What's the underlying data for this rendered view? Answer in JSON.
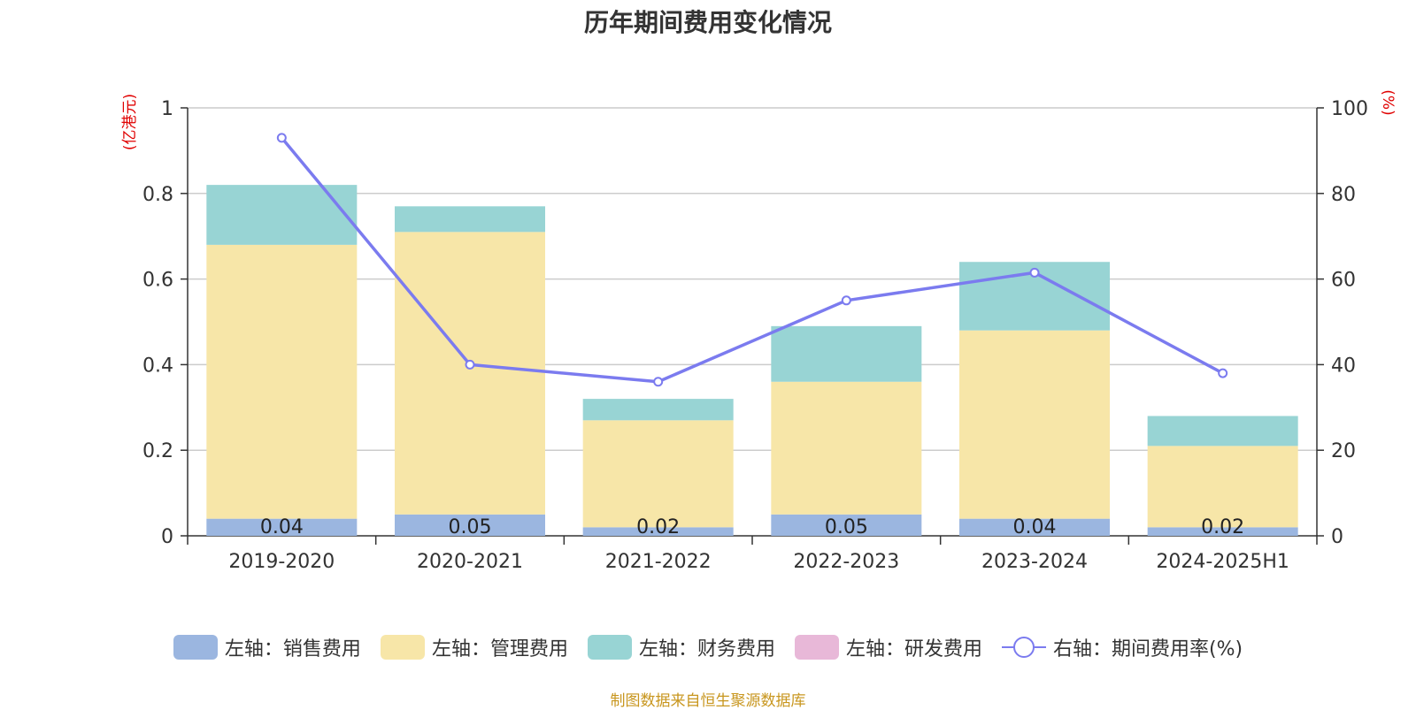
{
  "chart_data": {
    "type": "bar",
    "title": "历年期间费用变化情况",
    "categories": [
      "2019-2020",
      "2020-2021",
      "2021-2022",
      "2022-2023",
      "2023-2024",
      "2024-2025H1"
    ],
    "left_axis": {
      "label": "(亿港元)",
      "range": [
        0,
        1
      ],
      "ticks": [
        "0",
        "0.2",
        "0.4",
        "0.6",
        "0.8",
        "1"
      ]
    },
    "right_axis": {
      "label": "(%)",
      "range": [
        0,
        100
      ],
      "ticks": [
        "0",
        "20",
        "40",
        "60",
        "80",
        "100"
      ]
    },
    "series": [
      {
        "name": "左轴：销售费用",
        "kind": "bar",
        "axis": "left",
        "color": "#9bb6e0",
        "values": [
          0.04,
          0.05,
          0.02,
          0.05,
          0.04,
          0.02
        ],
        "labels": [
          "0.04",
          "0.05",
          "0.02",
          "0.05",
          "0.04",
          "0.02"
        ]
      },
      {
        "name": "左轴：管理费用",
        "kind": "bar",
        "axis": "left",
        "color": "#f7e6a8",
        "values": [
          0.64,
          0.66,
          0.25,
          0.31,
          0.44,
          0.19
        ]
      },
      {
        "name": "左轴：财务费用",
        "kind": "bar",
        "axis": "left",
        "color": "#98d4d4",
        "values": [
          0.14,
          0.06,
          0.05,
          0.13,
          0.16,
          0.07
        ]
      },
      {
        "name": "左轴：研发费用",
        "kind": "bar",
        "axis": "left",
        "color": "#e8b8d8",
        "values": [
          0,
          0,
          0,
          0,
          0,
          0
        ]
      },
      {
        "name": "右轴：期间费用率(%)",
        "kind": "line",
        "axis": "right",
        "color": "#7b7bef",
        "values": [
          93,
          40,
          36,
          55,
          61.5,
          38
        ]
      }
    ],
    "grid": true,
    "legend_position": "bottom"
  },
  "source_note": "制图数据来自恒生聚源数据库"
}
